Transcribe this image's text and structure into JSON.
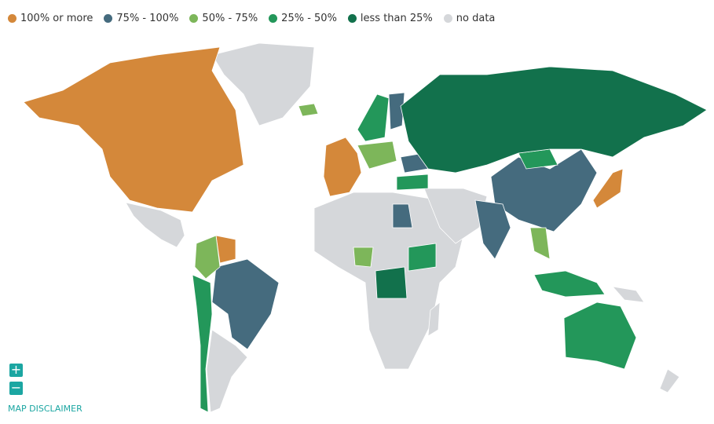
{
  "legend": [
    {
      "label": "100% or more",
      "color": "#d4883a"
    },
    {
      "label": "75% - 100%",
      "color": "#456b7e"
    },
    {
      "label": "50% - 75%",
      "color": "#7db65a"
    },
    {
      "label": "25% - 50%",
      "color": "#23975a"
    },
    {
      "label": "less than 25%",
      "color": "#12714c"
    },
    {
      "label": "no data",
      "color": "#d5d7da"
    }
  ],
  "controls": {
    "zoom_in": "+",
    "zoom_out": "−",
    "disclaimer": "MAP DISCLAIMER"
  }
}
